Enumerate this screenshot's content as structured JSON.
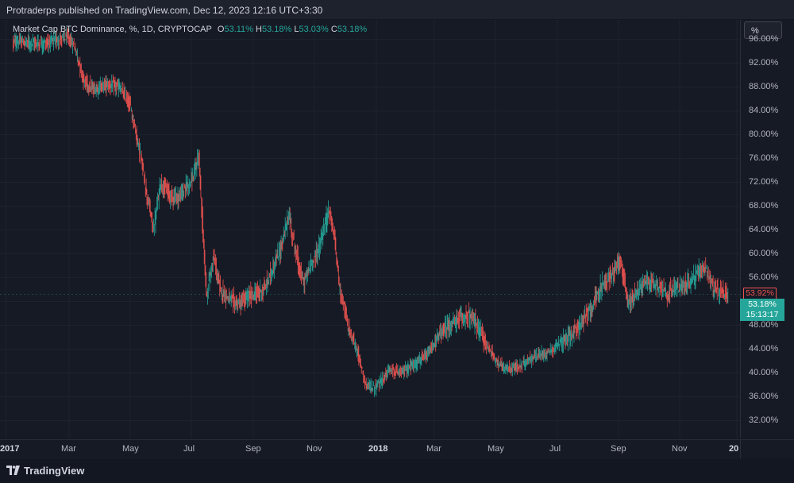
{
  "header": {
    "published_text": "Protraderps published on TradingView.com, Dec 12, 2023 12:16 UTC+3:30"
  },
  "legend": {
    "symbol": "Market Cap BTC Dominance, %, 1D, CRYPTOCAP",
    "o_label": "O",
    "o_value": "53.11%",
    "h_label": "H",
    "h_value": "53.18%",
    "l_label": "L",
    "l_value": "53.03%",
    "c_label": "C",
    "c_value": "53.18%"
  },
  "toolbar": {
    "percent_button": "%"
  },
  "price_tags": {
    "last_value": "53.92%",
    "current_value": "53.18%",
    "countdown": "15:13:17"
  },
  "footer": {
    "brand": "TradingView"
  },
  "colors": {
    "background": "#131722",
    "up": "#26a69a",
    "down": "#ef5350",
    "grid": "#1f2330"
  },
  "chart_data": {
    "type": "candlestick",
    "title": "Market Cap BTC Dominance, %, 1D, CRYPTOCAP",
    "y_unit": "%",
    "ylim": [
      29.0,
      99.3
    ],
    "y_ticks": [
      "96.00%",
      "92.00%",
      "88.00%",
      "84.00%",
      "80.00%",
      "76.00%",
      "72.00%",
      "68.00%",
      "64.00%",
      "60.00%",
      "56.00%",
      "52.00%",
      "48.00%",
      "44.00%",
      "40.00%",
      "36.00%",
      "32.00%"
    ],
    "x_ticks": [
      {
        "label": "2017",
        "major": true
      },
      {
        "label": "Mar",
        "major": false
      },
      {
        "label": "May",
        "major": false
      },
      {
        "label": "Jul",
        "major": false
      },
      {
        "label": "Sep",
        "major": false
      },
      {
        "label": "Nov",
        "major": false
      },
      {
        "label": "2018",
        "major": true
      },
      {
        "label": "Mar",
        "major": false
      },
      {
        "label": "May",
        "major": false
      },
      {
        "label": "Jul",
        "major": false
      },
      {
        "label": "Sep",
        "major": false
      },
      {
        "label": "Nov",
        "major": false
      },
      {
        "label": "20",
        "major": true
      }
    ],
    "grid": true,
    "path": [
      [
        "2017-01-01",
        95.6
      ],
      [
        "2017-02-01",
        95.3
      ],
      [
        "2017-02-25",
        96.4
      ],
      [
        "2017-03-05",
        95.0
      ],
      [
        "2017-03-15",
        89.0
      ],
      [
        "2017-03-25",
        87.5
      ],
      [
        "2017-04-05",
        88.5
      ],
      [
        "2017-04-20",
        88.0
      ],
      [
        "2017-05-01",
        85.0
      ],
      [
        "2017-05-10",
        78.0
      ],
      [
        "2017-05-18",
        70.0
      ],
      [
        "2017-05-25",
        64.0
      ],
      [
        "2017-06-01",
        72.0
      ],
      [
        "2017-06-10",
        70.0
      ],
      [
        "2017-06-20",
        69.5
      ],
      [
        "2017-06-28",
        71.5
      ],
      [
        "2017-07-05",
        73.0
      ],
      [
        "2017-07-10",
        76.5
      ],
      [
        "2017-07-18",
        53.0
      ],
      [
        "2017-07-25",
        59.5
      ],
      [
        "2017-08-01",
        54.0
      ],
      [
        "2017-08-10",
        52.5
      ],
      [
        "2017-08-20",
        51.5
      ],
      [
        "2017-09-01",
        53.0
      ],
      [
        "2017-09-15",
        54.0
      ],
      [
        "2017-10-01",
        60.5
      ],
      [
        "2017-10-10",
        66.5
      ],
      [
        "2017-10-20",
        58.0
      ],
      [
        "2017-10-25",
        55.0
      ],
      [
        "2017-11-01",
        58.0
      ],
      [
        "2017-11-10",
        61.0
      ],
      [
        "2017-11-20",
        67.5
      ],
      [
        "2017-11-25",
        63.5
      ],
      [
        "2017-12-01",
        54.5
      ],
      [
        "2017-12-10",
        47.5
      ],
      [
        "2017-12-20",
        43.0
      ],
      [
        "2017-12-28",
        38.0
      ],
      [
        "2018-01-05",
        37.5
      ],
      [
        "2018-01-12",
        38.5
      ],
      [
        "2018-01-20",
        40.5
      ],
      [
        "2018-02-01",
        40.0
      ],
      [
        "2018-02-15",
        41.5
      ],
      [
        "2018-03-01",
        43.0
      ],
      [
        "2018-03-15",
        47.0
      ],
      [
        "2018-03-28",
        48.5
      ],
      [
        "2018-04-10",
        49.8
      ],
      [
        "2018-04-20",
        48.0
      ],
      [
        "2018-05-01",
        44.5
      ],
      [
        "2018-05-10",
        42.0
      ],
      [
        "2018-05-20",
        40.5
      ],
      [
        "2018-06-01",
        41.0
      ],
      [
        "2018-06-15",
        42.5
      ],
      [
        "2018-07-01",
        43.5
      ],
      [
        "2018-07-15",
        45.0
      ],
      [
        "2018-08-01",
        47.5
      ],
      [
        "2018-08-15",
        51.0
      ],
      [
        "2018-08-25",
        54.5
      ],
      [
        "2018-09-05",
        56.5
      ],
      [
        "2018-09-12",
        59.0
      ],
      [
        "2018-09-18",
        55.5
      ],
      [
        "2018-09-22",
        51.5
      ],
      [
        "2018-10-01",
        54.0
      ],
      [
        "2018-10-10",
        55.5
      ],
      [
        "2018-10-20",
        55.0
      ],
      [
        "2018-11-01",
        53.5
      ],
      [
        "2018-11-15",
        54.5
      ],
      [
        "2018-11-25",
        55.5
      ],
      [
        "2018-12-03",
        57.0
      ],
      [
        "2018-12-10",
        57.5
      ],
      [
        "2018-12-18",
        54.0
      ],
      [
        "2018-12-25",
        53.5
      ],
      [
        "2019-01-01",
        53.2
      ]
    ]
  }
}
